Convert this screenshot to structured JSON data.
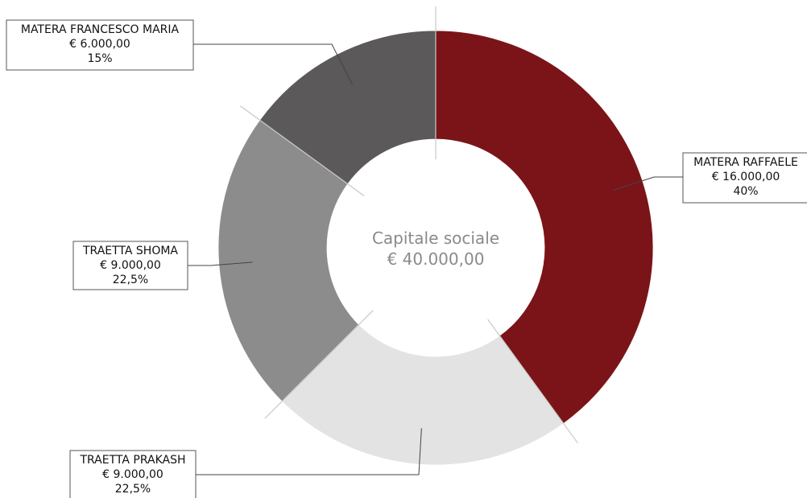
{
  "chart_data": {
    "type": "pie",
    "variant": "donut",
    "center_label": {
      "title": "Capitale sociale",
      "total": "€ 40.000,00"
    },
    "slices": [
      {
        "name": "MATERA RAFFAELE",
        "amount": "€ 16.000,00",
        "percent": "40%",
        "value": 40,
        "color": "#7b1418"
      },
      {
        "name": "TRAETTA PRAKASH",
        "amount": "€ 9.000,00",
        "percent": "22,5%",
        "value": 22.5,
        "color": "#e3e3e3"
      },
      {
        "name": "TRAETTA SHOMA",
        "amount": "€ 9.000,00",
        "percent": "22,5%",
        "value": 22.5,
        "color": "#8c8c8c"
      },
      {
        "name": "MATERA FRANCESCO MARIA",
        "amount": "€ 6.000,00",
        "percent": "15%",
        "value": 15,
        "color": "#5b595a"
      }
    ]
  }
}
